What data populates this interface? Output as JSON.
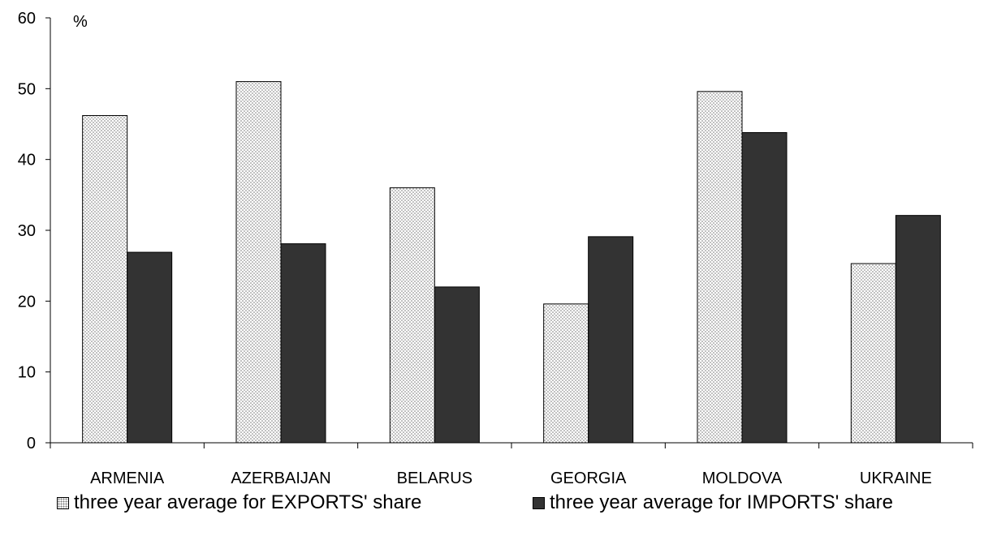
{
  "chart_data": {
    "type": "bar",
    "unit_label": "%",
    "categories": [
      "ARMENIA",
      "AZERBAIJAN",
      "BELARUS",
      "GEORGIA",
      "MOLDOVA",
      "UKRAINE"
    ],
    "series": [
      {
        "name": "three year average for EXPORTS' share",
        "values": [
          46.2,
          51.0,
          36.0,
          19.6,
          49.6,
          25.3
        ],
        "fill": "dots"
      },
      {
        "name": "three year average for IMPORTS' share",
        "values": [
          26.9,
          28.1,
          22.0,
          29.1,
          43.8,
          32.1
        ],
        "fill": "#333333"
      }
    ],
    "ylim": [
      0,
      60
    ],
    "yticks": [
      0,
      10,
      20,
      30,
      40,
      50,
      60
    ],
    "grid": false,
    "legend_position": "bottom",
    "colors": {
      "imports": "#333333",
      "exports_dots": "#777777",
      "axis": "#000000"
    }
  }
}
